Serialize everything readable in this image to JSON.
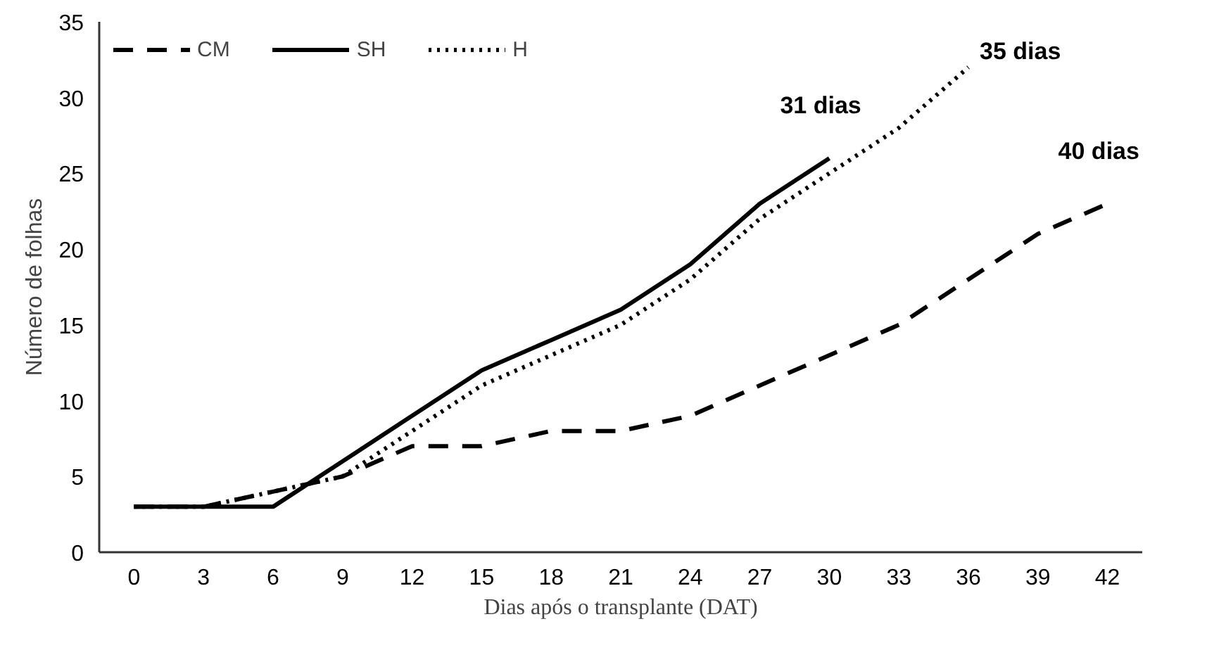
{
  "chart_data": {
    "type": "line",
    "xlabel": "Dias após o transplante (DAT)",
    "ylabel": "Número de folhas",
    "x": [
      0,
      3,
      6,
      9,
      12,
      15,
      18,
      21,
      24,
      27,
      30,
      33,
      36,
      39,
      42
    ],
    "xlim": [
      -1.5,
      43.5
    ],
    "xticks": [
      0,
      3,
      6,
      9,
      12,
      15,
      18,
      21,
      24,
      27,
      30,
      33,
      36,
      39,
      42
    ],
    "ylim": [
      0,
      35
    ],
    "yticks": [
      0,
      5,
      10,
      15,
      20,
      25,
      30,
      35
    ],
    "grid": false,
    "legend": "top left",
    "marker": "none",
    "series": [
      {
        "name": "CM",
        "color": "#000000",
        "line_style": "dashed",
        "values": [
          3,
          3,
          4,
          5,
          7,
          7,
          8,
          8,
          9,
          11,
          13,
          15,
          18,
          21,
          23
        ]
      },
      {
        "name": "SH",
        "color": "#000000",
        "line_style": "solid",
        "values": [
          3,
          3,
          3,
          6,
          9,
          12,
          14,
          16,
          19,
          23,
          26,
          null,
          null,
          null,
          null
        ]
      },
      {
        "name": "H",
        "color": "#000000",
        "line_style": "dotted",
        "values": [
          3,
          3,
          4,
          5,
          8,
          11,
          13,
          15,
          18,
          22,
          25,
          28,
          32,
          null,
          null
        ]
      }
    ],
    "annotations": [
      {
        "text": "31 dias",
        "x": 30,
        "y": 26
      },
      {
        "text": "35 dias",
        "x": 36,
        "y": 32
      },
      {
        "text": "40 dias",
        "x": 42,
        "y": 23
      }
    ]
  }
}
